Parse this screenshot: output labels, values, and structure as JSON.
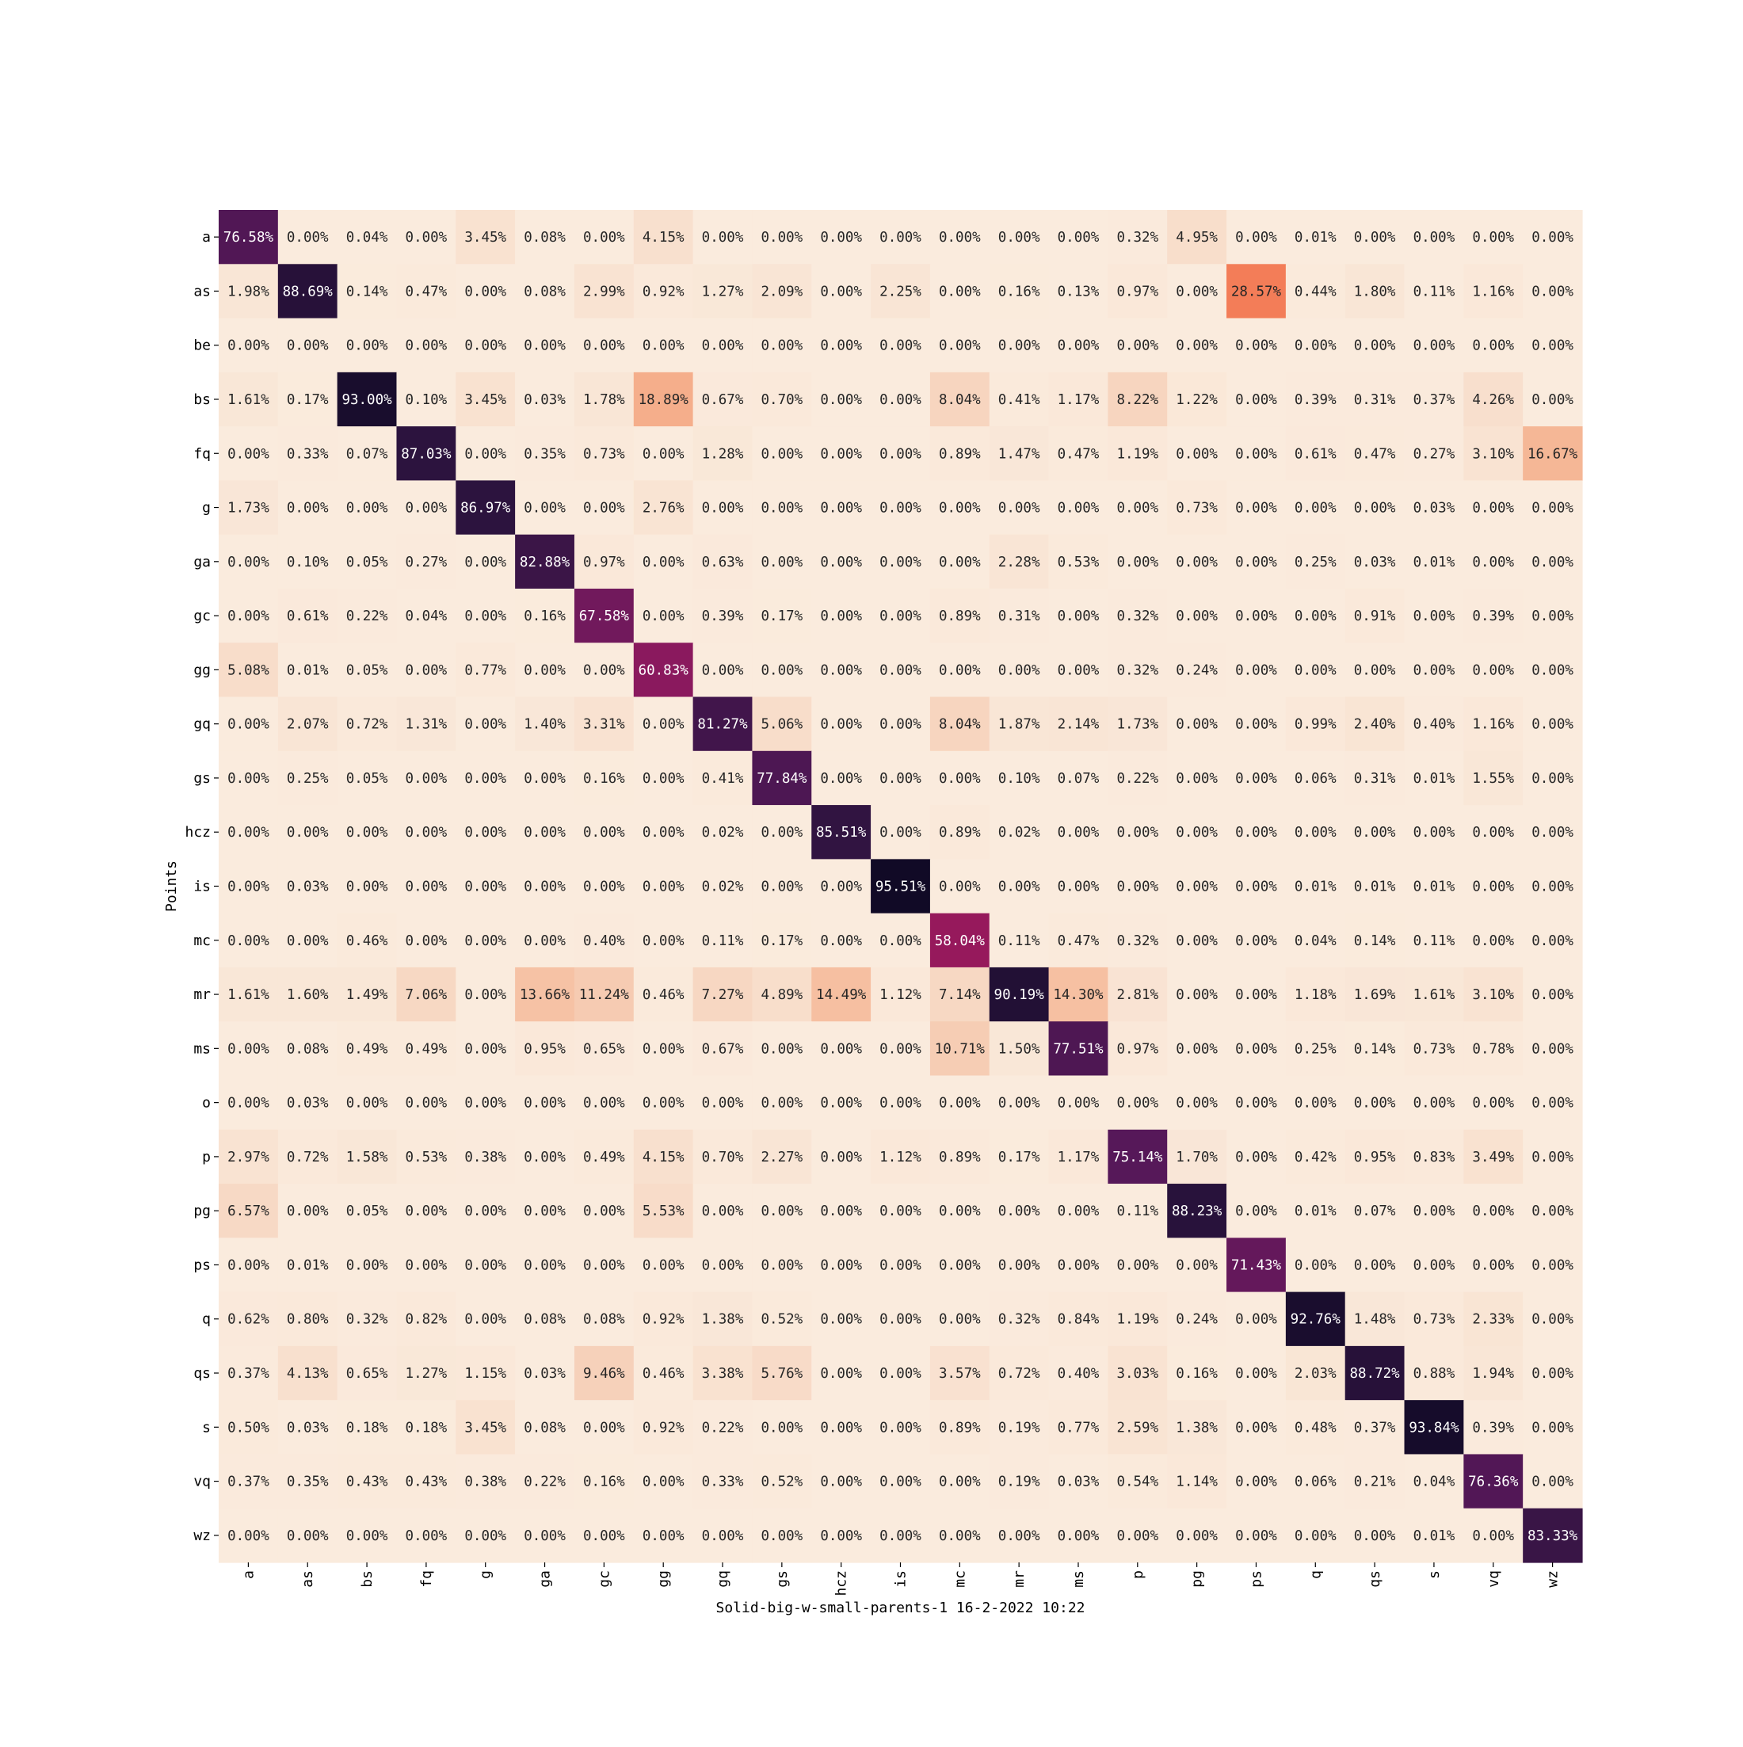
{
  "chart_data": {
    "type": "heatmap",
    "title": "",
    "xlabel": "Solid-big-w-small-parents-1 16-2-2022 10:22",
    "ylabel": "Points",
    "row_labels": [
      "a",
      "as",
      "be",
      "bs",
      "fq",
      "g",
      "ga",
      "gc",
      "gg",
      "gq",
      "gs",
      "hcz",
      "is",
      "mc",
      "mr",
      "ms",
      "o",
      "p",
      "pg",
      "ps",
      "q",
      "qs",
      "s",
      "vq",
      "wz"
    ],
    "col_labels": [
      "a",
      "as",
      "bs",
      "fq",
      "g",
      "ga",
      "gc",
      "gg",
      "gq",
      "gs",
      "hcz",
      "is",
      "mc",
      "mr",
      "ms",
      "p",
      "pg",
      "ps",
      "q",
      "qs",
      "s",
      "vq",
      "wz"
    ],
    "value_format": "percent_2dp",
    "value_range": [
      0,
      100
    ],
    "colorbar": false,
    "colormap": "rocket_r",
    "values": [
      [
        76.58,
        0.0,
        0.04,
        0.0,
        3.45,
        0.08,
        0.0,
        4.15,
        0.0,
        0.0,
        0.0,
        0.0,
        0.0,
        0.0,
        0.0,
        0.32,
        4.95,
        0.0,
        0.01,
        0.0,
        0.0,
        0.0,
        0.0
      ],
      [
        1.98,
        88.69,
        0.14,
        0.47,
        0.0,
        0.08,
        2.99,
        0.92,
        1.27,
        2.09,
        0.0,
        2.25,
        0.0,
        0.16,
        0.13,
        0.97,
        0.0,
        28.57,
        0.44,
        1.8,
        0.11,
        1.16,
        0.0
      ],
      [
        0.0,
        0.0,
        0.0,
        0.0,
        0.0,
        0.0,
        0.0,
        0.0,
        0.0,
        0.0,
        0.0,
        0.0,
        0.0,
        0.0,
        0.0,
        0.0,
        0.0,
        0.0,
        0.0,
        0.0,
        0.0,
        0.0,
        0.0
      ],
      [
        1.61,
        0.17,
        93.0,
        0.1,
        3.45,
        0.03,
        1.78,
        18.89,
        0.67,
        0.7,
        0.0,
        0.0,
        8.04,
        0.41,
        1.17,
        8.22,
        1.22,
        0.0,
        0.39,
        0.31,
        0.37,
        4.26,
        0.0
      ],
      [
        0.0,
        0.33,
        0.07,
        87.03,
        0.0,
        0.35,
        0.73,
        0.0,
        1.28,
        0.0,
        0.0,
        0.0,
        0.89,
        1.47,
        0.47,
        1.19,
        0.0,
        0.0,
        0.61,
        0.47,
        0.27,
        3.1,
        16.67
      ],
      [
        1.73,
        0.0,
        0.0,
        0.0,
        86.97,
        0.0,
        0.0,
        2.76,
        0.0,
        0.0,
        0.0,
        0.0,
        0.0,
        0.0,
        0.0,
        0.0,
        0.73,
        0.0,
        0.0,
        0.0,
        0.03,
        0.0,
        0.0
      ],
      [
        0.0,
        0.1,
        0.05,
        0.27,
        0.0,
        82.88,
        0.97,
        0.0,
        0.63,
        0.0,
        0.0,
        0.0,
        0.0,
        2.28,
        0.53,
        0.0,
        0.0,
        0.0,
        0.25,
        0.03,
        0.01,
        0.0,
        0.0
      ],
      [
        0.0,
        0.61,
        0.22,
        0.04,
        0.0,
        0.16,
        67.58,
        0.0,
        0.39,
        0.17,
        0.0,
        0.0,
        0.89,
        0.31,
        0.0,
        0.32,
        0.0,
        0.0,
        0.0,
        0.91,
        0.0,
        0.39,
        0.0
      ],
      [
        5.08,
        0.01,
        0.05,
        0.0,
        0.77,
        0.0,
        0.0,
        60.83,
        0.0,
        0.0,
        0.0,
        0.0,
        0.0,
        0.0,
        0.0,
        0.32,
        0.24,
        0.0,
        0.0,
        0.0,
        0.0,
        0.0,
        0.0
      ],
      [
        0.0,
        2.07,
        0.72,
        1.31,
        0.0,
        1.4,
        3.31,
        0.0,
        81.27,
        5.06,
        0.0,
        0.0,
        8.04,
        1.87,
        2.14,
        1.73,
        0.0,
        0.0,
        0.99,
        2.4,
        0.4,
        1.16,
        0.0
      ],
      [
        0.0,
        0.25,
        0.05,
        0.0,
        0.0,
        0.0,
        0.16,
        0.0,
        0.41,
        77.84,
        0.0,
        0.0,
        0.0,
        0.1,
        0.07,
        0.22,
        0.0,
        0.0,
        0.06,
        0.31,
        0.01,
        1.55,
        0.0
      ],
      [
        0.0,
        0.0,
        0.0,
        0.0,
        0.0,
        0.0,
        0.0,
        0.0,
        0.02,
        0.0,
        85.51,
        0.0,
        0.89,
        0.02,
        0.0,
        0.0,
        0.0,
        0.0,
        0.0,
        0.0,
        0.0,
        0.0,
        0.0
      ],
      [
        0.0,
        0.03,
        0.0,
        0.0,
        0.0,
        0.0,
        0.0,
        0.0,
        0.02,
        0.0,
        0.0,
        95.51,
        0.0,
        0.0,
        0.0,
        0.0,
        0.0,
        0.0,
        0.01,
        0.01,
        0.01,
        0.0,
        0.0
      ],
      [
        0.0,
        0.0,
        0.46,
        0.0,
        0.0,
        0.0,
        0.4,
        0.0,
        0.11,
        0.17,
        0.0,
        0.0,
        58.04,
        0.11,
        0.47,
        0.32,
        0.0,
        0.0,
        0.04,
        0.14,
        0.11,
        0.0,
        0.0
      ],
      [
        1.61,
        1.6,
        1.49,
        7.06,
        0.0,
        13.66,
        11.24,
        0.46,
        7.27,
        4.89,
        14.49,
        1.12,
        7.14,
        90.19,
        14.3,
        2.81,
        0.0,
        0.0,
        1.18,
        1.69,
        1.61,
        3.1,
        0.0
      ],
      [
        0.0,
        0.08,
        0.49,
        0.49,
        0.0,
        0.95,
        0.65,
        0.0,
        0.67,
        0.0,
        0.0,
        0.0,
        10.71,
        1.5,
        77.51,
        0.97,
        0.0,
        0.0,
        0.25,
        0.14,
        0.73,
        0.78,
        0.0
      ],
      [
        0.0,
        0.03,
        0.0,
        0.0,
        0.0,
        0.0,
        0.0,
        0.0,
        0.0,
        0.0,
        0.0,
        0.0,
        0.0,
        0.0,
        0.0,
        0.0,
        0.0,
        0.0,
        0.0,
        0.0,
        0.0,
        0.0,
        0.0
      ],
      [
        2.97,
        0.72,
        1.58,
        0.53,
        0.38,
        0.0,
        0.49,
        4.15,
        0.7,
        2.27,
        0.0,
        1.12,
        0.89,
        0.17,
        1.17,
        75.14,
        1.7,
        0.0,
        0.42,
        0.95,
        0.83,
        3.49,
        0.0
      ],
      [
        6.57,
        0.0,
        0.05,
        0.0,
        0.0,
        0.0,
        0.0,
        5.53,
        0.0,
        0.0,
        0.0,
        0.0,
        0.0,
        0.0,
        0.0,
        0.11,
        88.23,
        0.0,
        0.01,
        0.07,
        0.0,
        0.0,
        0.0
      ],
      [
        0.0,
        0.01,
        0.0,
        0.0,
        0.0,
        0.0,
        0.0,
        0.0,
        0.0,
        0.0,
        0.0,
        0.0,
        0.0,
        0.0,
        0.0,
        0.0,
        0.0,
        71.43,
        0.0,
        0.0,
        0.0,
        0.0,
        0.0
      ],
      [
        0.62,
        0.8,
        0.32,
        0.82,
        0.0,
        0.08,
        0.08,
        0.92,
        1.38,
        0.52,
        0.0,
        0.0,
        0.0,
        0.32,
        0.84,
        1.19,
        0.24,
        0.0,
        92.76,
        1.48,
        0.73,
        2.33,
        0.0
      ],
      [
        0.37,
        4.13,
        0.65,
        1.27,
        1.15,
        0.03,
        9.46,
        0.46,
        3.38,
        5.76,
        0.0,
        0.0,
        3.57,
        0.72,
        0.4,
        3.03,
        0.16,
        0.0,
        2.03,
        88.72,
        0.88,
        1.94,
        0.0
      ],
      [
        0.5,
        0.03,
        0.18,
        0.18,
        3.45,
        0.08,
        0.0,
        0.92,
        0.22,
        0.0,
        0.0,
        0.0,
        0.89,
        0.19,
        0.77,
        2.59,
        1.38,
        0.0,
        0.48,
        0.37,
        93.84,
        0.39,
        0.0
      ],
      [
        0.37,
        0.35,
        0.43,
        0.43,
        0.38,
        0.22,
        0.16,
        0.0,
        0.33,
        0.52,
        0.0,
        0.0,
        0.0,
        0.19,
        0.03,
        0.54,
        1.14,
        0.0,
        0.06,
        0.21,
        0.04,
        76.36,
        0.0
      ],
      [
        0.0,
        0.0,
        0.0,
        0.0,
        0.0,
        0.0,
        0.0,
        0.0,
        0.0,
        0.0,
        0.0,
        0.0,
        0.0,
        0.0,
        0.0,
        0.0,
        0.0,
        0.0,
        0.0,
        0.0,
        0.01,
        0.0,
        83.33
      ]
    ]
  }
}
